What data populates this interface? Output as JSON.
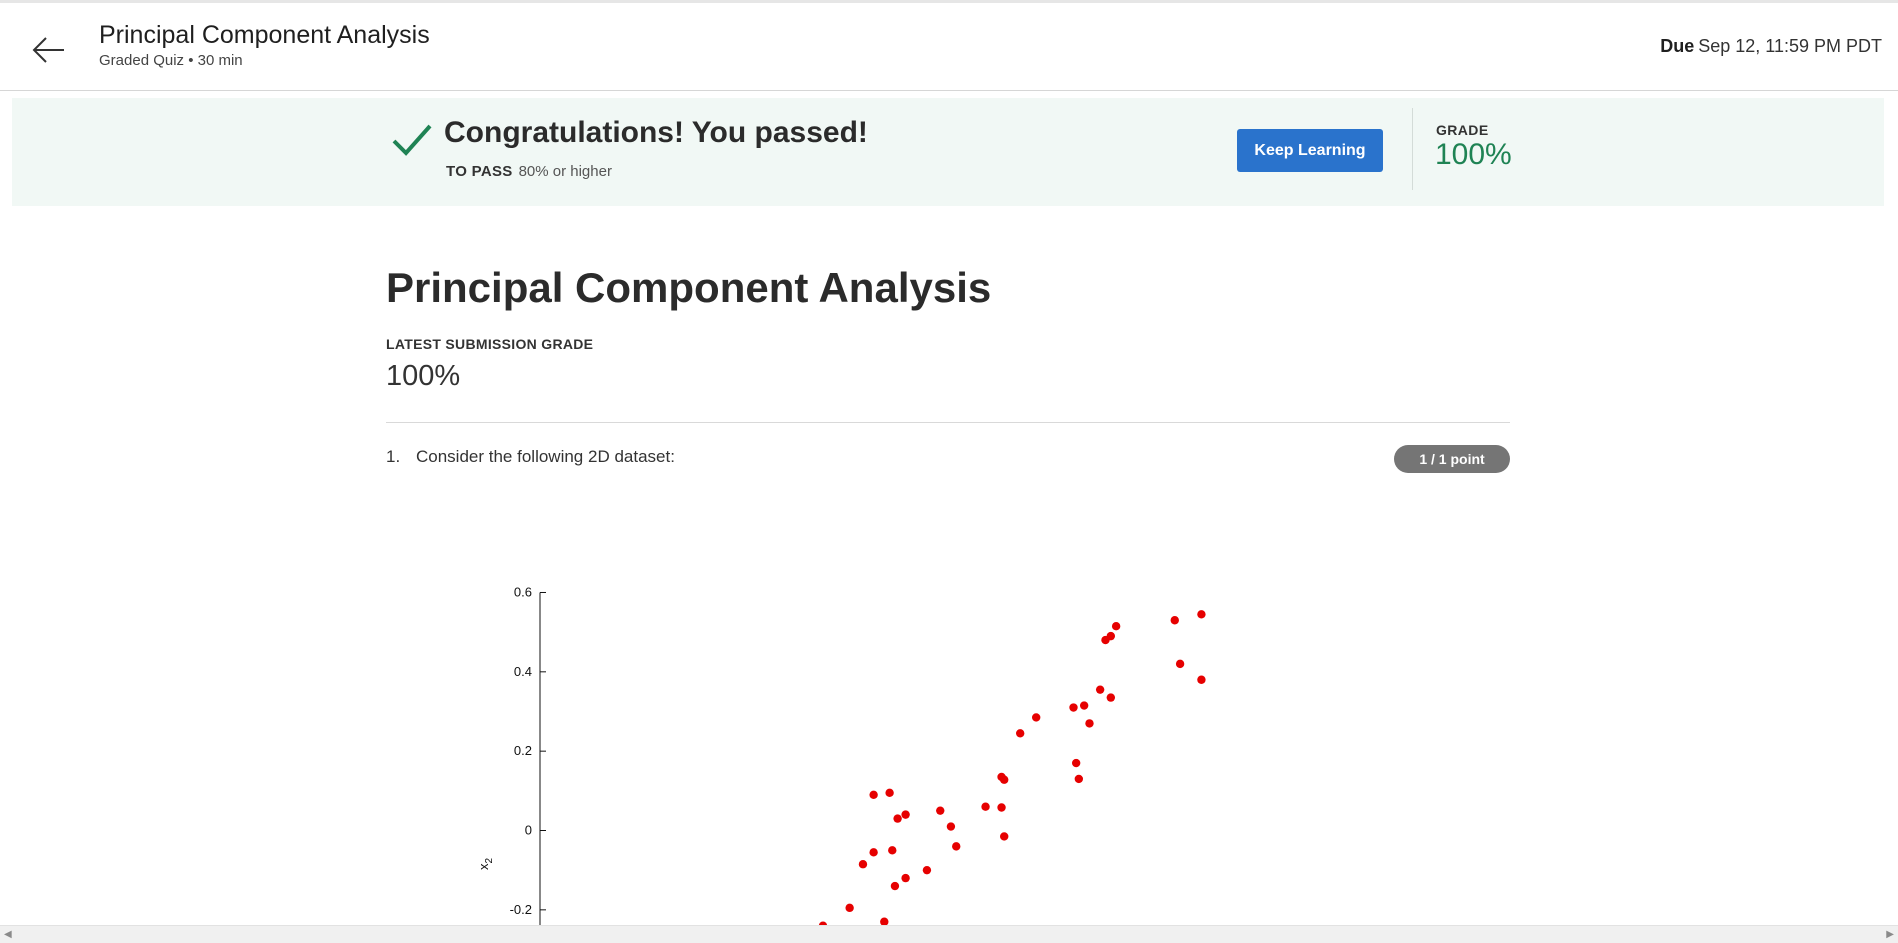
{
  "header": {
    "title": "Principal Component Analysis",
    "subtitle": "Graded Quiz • 30 min",
    "due_label": "Due",
    "due_value": "Sep 12, 11:59 PM PDT",
    "back_icon": "arrow-left-icon"
  },
  "banner": {
    "message": "Congratulations! You passed!",
    "to_pass_label": "TO PASS",
    "to_pass_value": "80% or higher",
    "keep_learning_label": "Keep Learning",
    "grade_label": "GRADE",
    "grade_value": "100%",
    "check_icon": "checkmark-icon",
    "colors": {
      "background": "#f1f8f5",
      "success": "#1f8354",
      "button": "#2a73cc"
    }
  },
  "main": {
    "title": "Principal Component Analysis",
    "latest_label": "LATEST SUBMISSION GRADE",
    "latest_value": "100%"
  },
  "question": {
    "number": "1.",
    "text": "Consider the following 2D dataset:",
    "points": "1 / 1 point"
  },
  "chart_data": {
    "type": "scatter",
    "ylabel": "x",
    "ylabel_subscript": "2",
    "y_ticks": [
      "0.6",
      "0.4",
      "0.2",
      "0",
      "-0.2"
    ],
    "y_tick_values": [
      0.6,
      0.4,
      0.2,
      0,
      -0.2
    ],
    "ylim_visible": [
      -0.25,
      0.6
    ],
    "point_color": "#e60000",
    "points": [
      {
        "x": 0.74,
        "y": 0.545
      },
      {
        "x": 0.69,
        "y": 0.53
      },
      {
        "x": 0.74,
        "y": 0.38
      },
      {
        "x": 0.7,
        "y": 0.42
      },
      {
        "x": 0.58,
        "y": 0.515
      },
      {
        "x": 0.57,
        "y": 0.49
      },
      {
        "x": 0.56,
        "y": 0.48
      },
      {
        "x": 0.55,
        "y": 0.355
      },
      {
        "x": 0.57,
        "y": 0.335
      },
      {
        "x": 0.5,
        "y": 0.31
      },
      {
        "x": 0.52,
        "y": 0.315
      },
      {
        "x": 0.53,
        "y": 0.27
      },
      {
        "x": 0.43,
        "y": 0.285
      },
      {
        "x": 0.4,
        "y": 0.245
      },
      {
        "x": 0.505,
        "y": 0.17
      },
      {
        "x": 0.51,
        "y": 0.13
      },
      {
        "x": 0.365,
        "y": 0.135
      },
      {
        "x": 0.37,
        "y": 0.128
      },
      {
        "x": 0.335,
        "y": 0.06
      },
      {
        "x": 0.365,
        "y": 0.058
      },
      {
        "x": 0.37,
        "y": -0.015
      },
      {
        "x": 0.25,
        "y": 0.05
      },
      {
        "x": 0.27,
        "y": 0.01
      },
      {
        "x": 0.28,
        "y": -0.04
      },
      {
        "x": 0.155,
        "y": 0.095
      },
      {
        "x": 0.125,
        "y": 0.09
      },
      {
        "x": 0.185,
        "y": 0.04
      },
      {
        "x": 0.17,
        "y": 0.03
      },
      {
        "x": 0.16,
        "y": -0.05
      },
      {
        "x": 0.125,
        "y": -0.055
      },
      {
        "x": 0.225,
        "y": -0.1
      },
      {
        "x": 0.185,
        "y": -0.12
      },
      {
        "x": 0.105,
        "y": -0.085
      },
      {
        "x": 0.165,
        "y": -0.14
      },
      {
        "x": 0.08,
        "y": -0.195
      },
      {
        "x": 0.145,
        "y": -0.23
      },
      {
        "x": 0.03,
        "y": -0.24
      }
    ]
  }
}
